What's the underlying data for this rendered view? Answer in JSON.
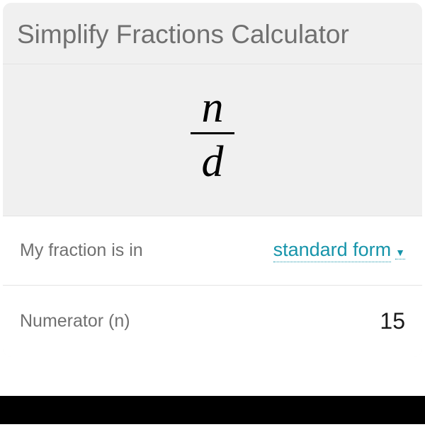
{
  "header": {
    "title": "Simplify Fractions Calculator"
  },
  "fraction": {
    "numerator_symbol": "n",
    "denominator_symbol": "d"
  },
  "rows": {
    "form": {
      "label": "My fraction is in",
      "value": "standard form"
    },
    "numerator": {
      "label": "Numerator (n)",
      "value": "15"
    }
  },
  "colors": {
    "header_bg": "#f0f0f0",
    "card_bg": "#f5f5f5",
    "row_bg": "#ffffff",
    "border": "#e3e3e3",
    "title_color": "#707070",
    "label_color": "#707070",
    "accent": "#1694aa",
    "value_color": "#1a1a1a",
    "fraction_color": "#000000"
  }
}
